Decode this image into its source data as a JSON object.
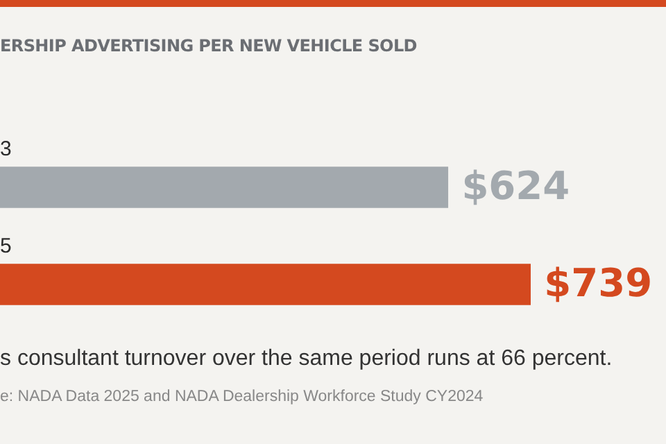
{
  "chart_data": {
    "type": "bar",
    "orientation": "horizontal",
    "title": "ERSHIP ADVERTISING PER NEW VEHICLE SOLD",
    "categories": [
      "3",
      "5"
    ],
    "values": [
      624,
      739
    ],
    "colors": [
      "#a3a9ae",
      "#d4491f"
    ],
    "value_labels": [
      "$624",
      "$739"
    ],
    "annotations": [
      "s consultant turnover over the same period runs at 66 percent.",
      "e: NADA Data 2025 and NADA Dealership Workforce Study CY2024"
    ]
  }
}
